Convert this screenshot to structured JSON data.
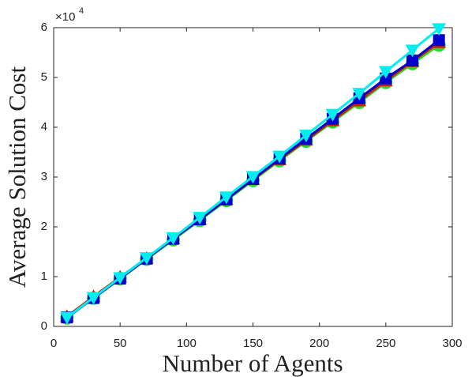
{
  "chart_data": {
    "type": "line",
    "xlabel": "Number of Agents",
    "ylabel": "Average Solution Cost",
    "y_multiplier": "×10",
    "y_exponent": "4",
    "x": [
      10,
      30,
      50,
      70,
      90,
      110,
      130,
      150,
      170,
      190,
      210,
      230,
      250,
      270,
      290
    ],
    "series": [
      {
        "color": "#22dd22",
        "marker": "circle",
        "values": [
          0.17,
          0.57,
          0.96,
          1.35,
          1.74,
          2.13,
          2.53,
          2.93,
          3.33,
          3.72,
          4.11,
          4.5,
          4.9,
          5.28,
          5.65
        ]
      },
      {
        "color": "#cc2200",
        "marker": "triangle-up",
        "values": [
          0.2,
          0.6,
          0.99,
          1.37,
          1.76,
          2.15,
          2.55,
          2.95,
          3.35,
          3.74,
          4.13,
          4.53,
          4.93,
          5.32,
          5.7
        ]
      },
      {
        "color": "#0000cc",
        "marker": "square",
        "values": [
          0.18,
          0.57,
          0.96,
          1.36,
          1.76,
          2.15,
          2.55,
          2.96,
          3.37,
          3.77,
          4.17,
          4.58,
          4.98,
          5.34,
          5.75
        ]
      },
      {
        "color": "#00eeee",
        "marker": "triangle-down",
        "values": [
          0.18,
          0.58,
          0.98,
          1.38,
          1.78,
          2.19,
          2.6,
          3.01,
          3.42,
          3.84,
          4.26,
          4.68,
          5.12,
          5.55,
          5.98
        ]
      }
    ],
    "xlim": [
      0,
      300
    ],
    "xticks": [
      0,
      50,
      100,
      150,
      200,
      250,
      300
    ],
    "ylim": [
      0,
      6
    ],
    "yticks": [
      0,
      1,
      2,
      3,
      4,
      5,
      6
    ]
  }
}
